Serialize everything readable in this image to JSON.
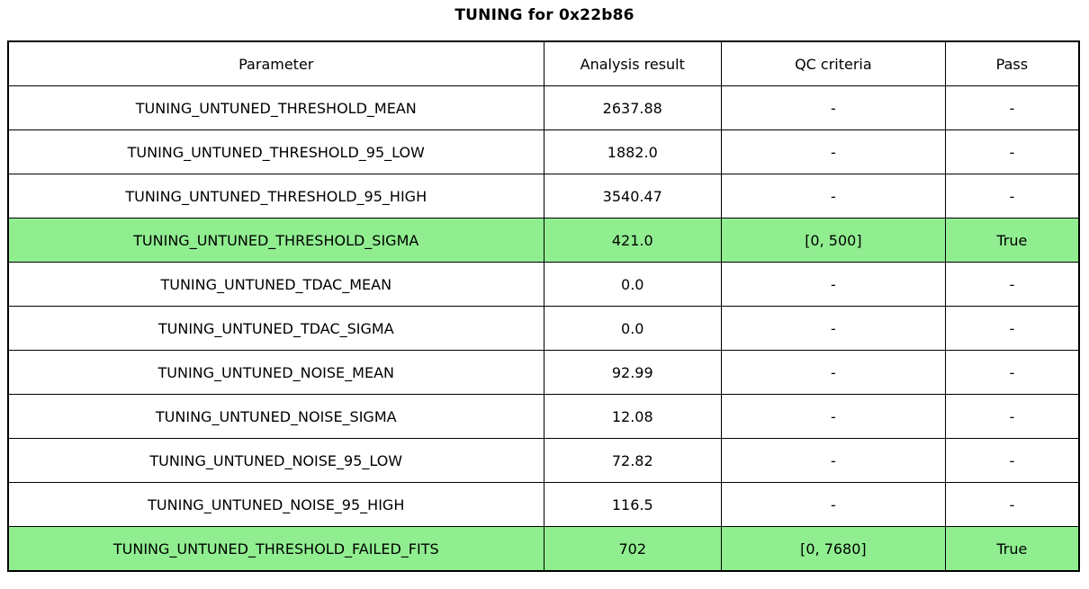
{
  "title": "TUNING for 0x22b86",
  "colors": {
    "highlight_green": "#90EE90",
    "border": "#000000",
    "background": "#ffffff"
  },
  "chart_data": {
    "type": "table",
    "title": "TUNING for 0x22b86",
    "columns": [
      "Parameter",
      "Analysis result",
      "QC criteria",
      "Pass"
    ],
    "rows": [
      [
        "TUNING_UNTUNED_THRESHOLD_MEAN",
        "2637.88",
        "-",
        "-"
      ],
      [
        "TUNING_UNTUNED_THRESHOLD_95_LOW",
        "1882.0",
        "-",
        "-"
      ],
      [
        "TUNING_UNTUNED_THRESHOLD_95_HIGH",
        "3540.47",
        "-",
        "-"
      ],
      [
        "TUNING_UNTUNED_THRESHOLD_SIGMA",
        "421.0",
        "[0, 500]",
        "True"
      ],
      [
        "TUNING_UNTUNED_TDAC_MEAN",
        "0.0",
        "-",
        "-"
      ],
      [
        "TUNING_UNTUNED_TDAC_SIGMA",
        "0.0",
        "-",
        "-"
      ],
      [
        "TUNING_UNTUNED_NOISE_MEAN",
        "92.99",
        "-",
        "-"
      ],
      [
        "TUNING_UNTUNED_NOISE_SIGMA",
        "12.08",
        "-",
        "-"
      ],
      [
        "TUNING_UNTUNED_NOISE_95_LOW",
        "72.82",
        "-",
        "-"
      ],
      [
        "TUNING_UNTUNED_NOISE_95_HIGH",
        "116.5",
        "-",
        "-"
      ],
      [
        "TUNING_UNTUNED_THRESHOLD_FAILED_FITS",
        "702",
        "[0, 7680]",
        "True"
      ]
    ],
    "highlighted_rows": [
      3,
      10
    ],
    "highlight_color": "#90EE90",
    "layout": {
      "grid": "on",
      "column_width_pct": [
        50.0,
        16.6,
        20.9,
        12.5
      ]
    }
  }
}
